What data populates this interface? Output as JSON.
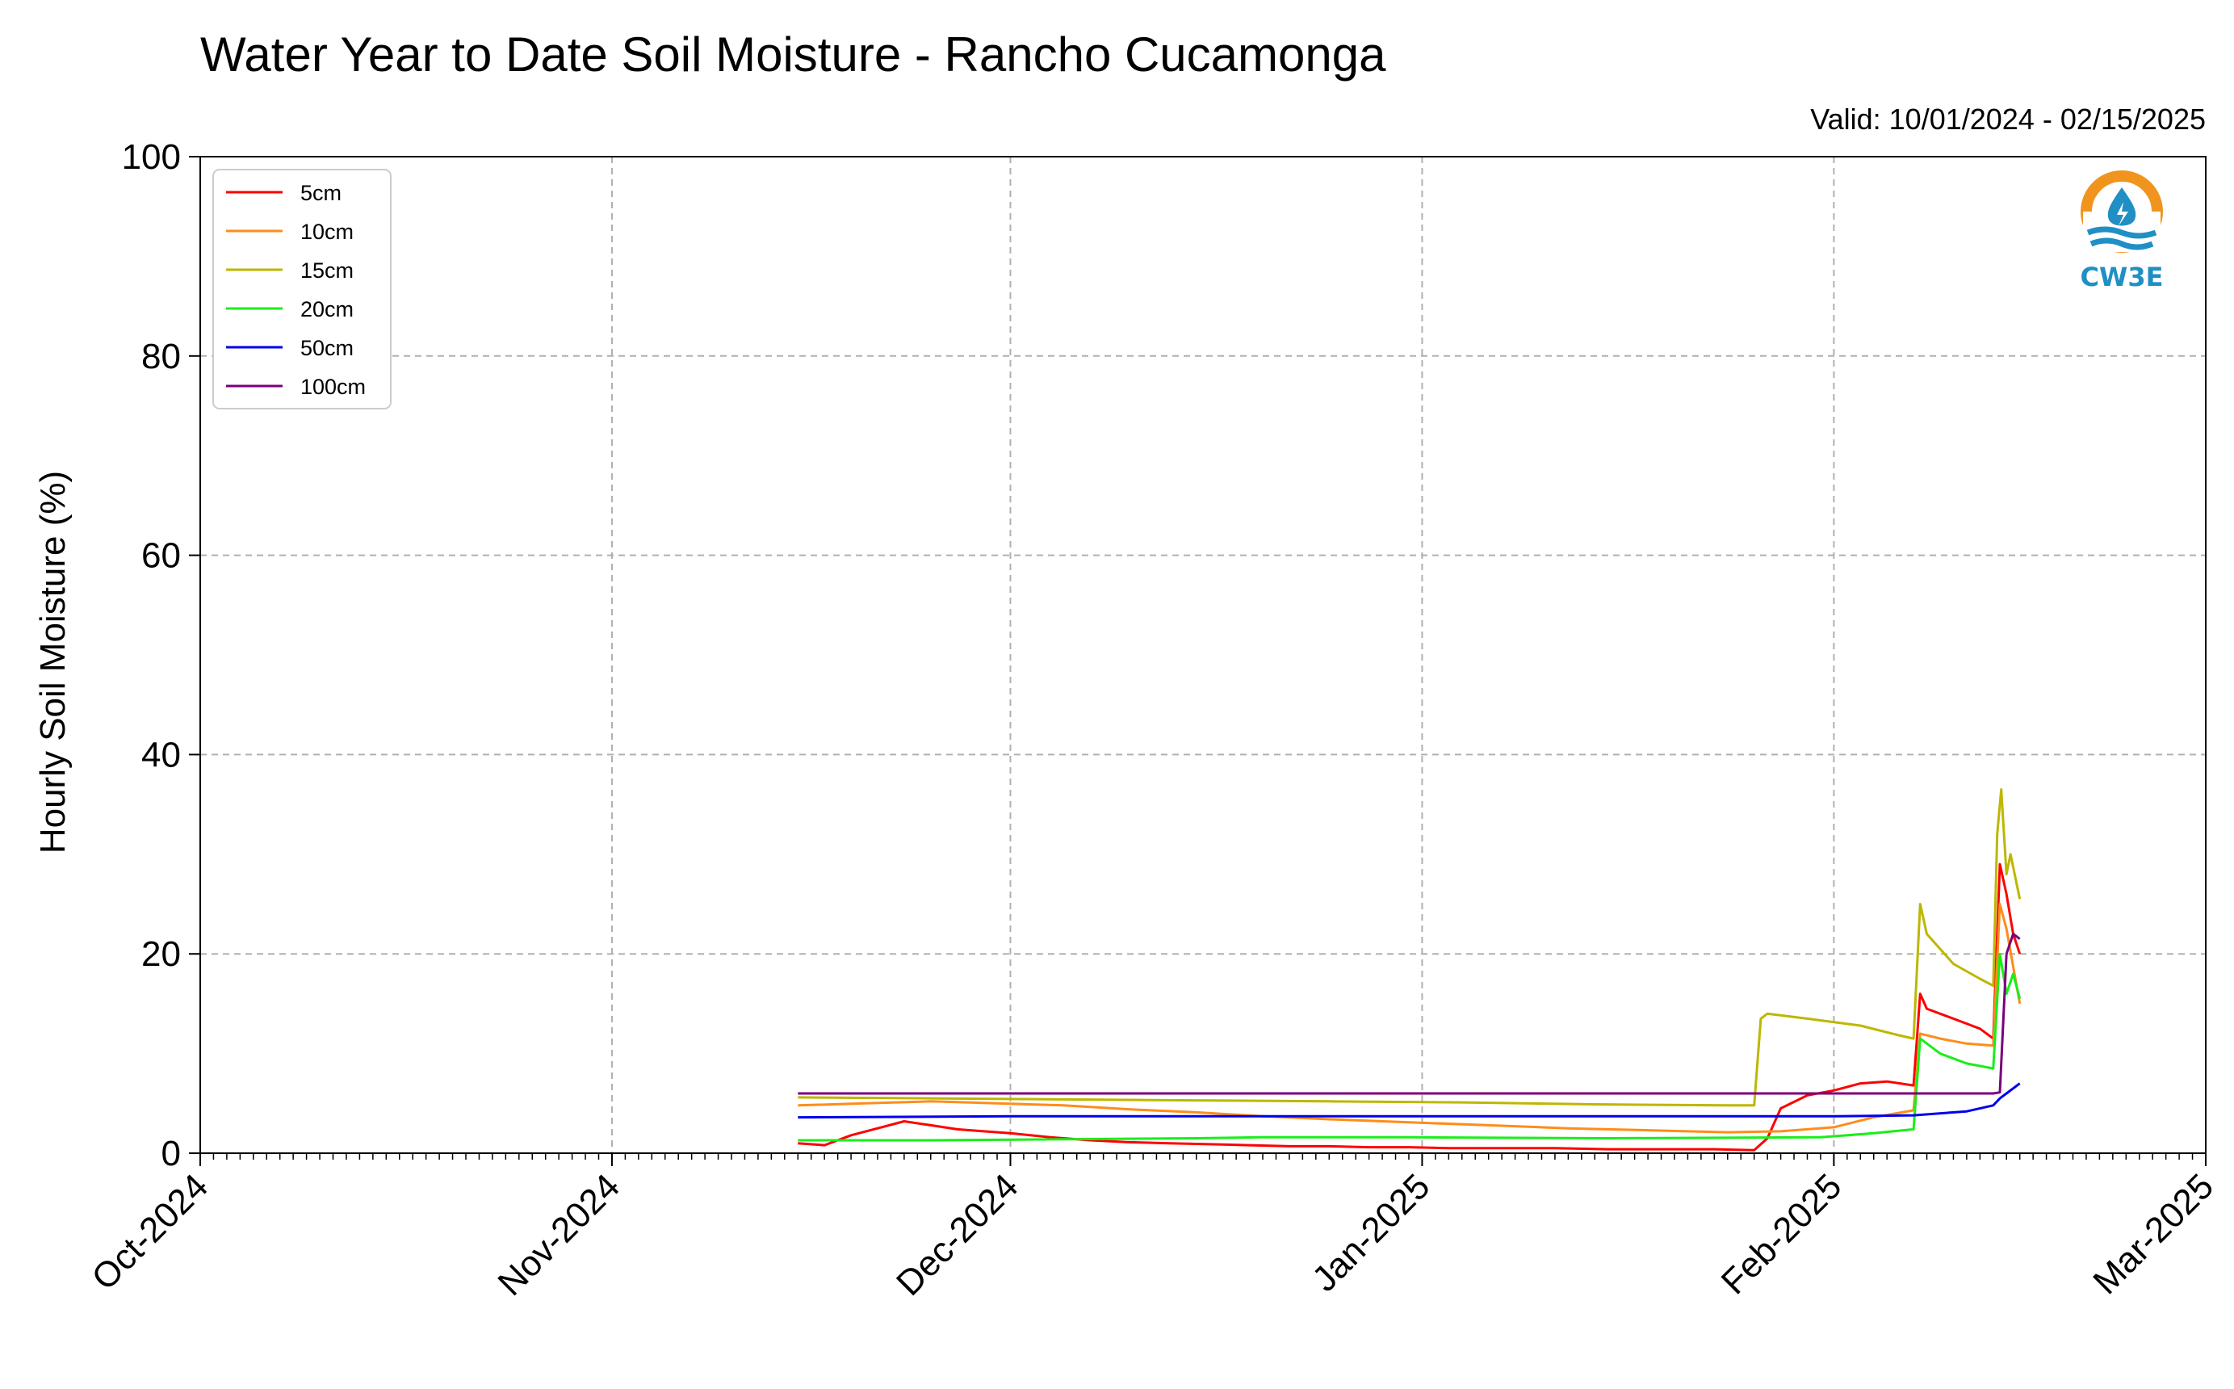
{
  "chart_data": {
    "type": "line",
    "title": "Water Year to Date Soil Moisture - Rancho Cucamonga",
    "subtitle": "Valid: 10/01/2024 - 02/15/2025",
    "ylabel": "Hourly Soil Moisture (%)",
    "xlabel": "",
    "ylim": [
      0,
      100
    ],
    "xlim": [
      "2024-10-01",
      "2025-03-01"
    ],
    "grid": true,
    "legend_position": "top-left",
    "yticks": [
      0,
      20,
      40,
      60,
      80,
      100
    ],
    "xticks": [
      {
        "date": "2024-10-01",
        "label": "Oct-2024"
      },
      {
        "date": "2024-11-01",
        "label": "Nov-2024"
      },
      {
        "date": "2024-12-01",
        "label": "Dec-2024"
      },
      {
        "date": "2025-01-01",
        "label": "Jan-2025"
      },
      {
        "date": "2025-02-01",
        "label": "Feb-2025"
      },
      {
        "date": "2025-03-01",
        "label": "Mar-2025"
      }
    ],
    "series": [
      {
        "name": "5cm",
        "color": "#ff0000",
        "points": [
          [
            "2024-11-15",
            1.0
          ],
          [
            "2024-11-17",
            0.8
          ],
          [
            "2024-11-19",
            1.8
          ],
          [
            "2024-11-21",
            2.5
          ],
          [
            "2024-11-23",
            3.2
          ],
          [
            "2024-11-25",
            2.8
          ],
          [
            "2024-11-27",
            2.4
          ],
          [
            "2024-11-29",
            2.2
          ],
          [
            "2024-12-01",
            2.0
          ],
          [
            "2024-12-04",
            1.6
          ],
          [
            "2024-12-07",
            1.3
          ],
          [
            "2024-12-10",
            1.1
          ],
          [
            "2024-12-13",
            1.0
          ],
          [
            "2024-12-16",
            0.9
          ],
          [
            "2024-12-19",
            0.8
          ],
          [
            "2024-12-22",
            0.7
          ],
          [
            "2024-12-25",
            0.7
          ],
          [
            "2024-12-28",
            0.6
          ],
          [
            "2024-12-31",
            0.6
          ],
          [
            "2025-01-03",
            0.5
          ],
          [
            "2025-01-07",
            0.5
          ],
          [
            "2025-01-11",
            0.5
          ],
          [
            "2025-01-15",
            0.4
          ],
          [
            "2025-01-19",
            0.4
          ],
          [
            "2025-01-23",
            0.4
          ],
          [
            "2025-01-26",
            0.3
          ],
          [
            "2025-01-27",
            1.5
          ],
          [
            "2025-01-28",
            4.5
          ],
          [
            "2025-01-30",
            5.8
          ],
          [
            "2025-02-01",
            6.3
          ],
          [
            "2025-02-03",
            7.0
          ],
          [
            "2025-02-05",
            7.2
          ],
          [
            "2025-02-07",
            6.8
          ],
          [
            "2025-02-07.5",
            16.0
          ],
          [
            "2025-02-08",
            14.5
          ],
          [
            "2025-02-10",
            13.5
          ],
          [
            "2025-02-12",
            12.5
          ],
          [
            "2025-02-13",
            11.5
          ],
          [
            "2025-02-13.5",
            29.0
          ],
          [
            "2025-02-14",
            26.0
          ],
          [
            "2025-02-14.5",
            22.0
          ],
          [
            "2025-02-15",
            20.0
          ]
        ]
      },
      {
        "name": "10cm",
        "color": "#ff8c1a",
        "points": [
          [
            "2024-11-15",
            4.8
          ],
          [
            "2024-11-20",
            5.0
          ],
          [
            "2024-11-25",
            5.2
          ],
          [
            "2024-11-30",
            5.0
          ],
          [
            "2024-12-05",
            4.8
          ],
          [
            "2024-12-10",
            4.4
          ],
          [
            "2024-12-15",
            4.1
          ],
          [
            "2024-12-20",
            3.7
          ],
          [
            "2024-12-25",
            3.4
          ],
          [
            "2024-12-31",
            3.1
          ],
          [
            "2025-01-06",
            2.8
          ],
          [
            "2025-01-12",
            2.5
          ],
          [
            "2025-01-18",
            2.3
          ],
          [
            "2025-01-24",
            2.1
          ],
          [
            "2025-01-28",
            2.2
          ],
          [
            "2025-02-01",
            2.6
          ],
          [
            "2025-02-04",
            3.6
          ],
          [
            "2025-02-07",
            4.3
          ],
          [
            "2025-02-07.5",
            12.0
          ],
          [
            "2025-02-09",
            11.5
          ],
          [
            "2025-02-11",
            11.0
          ],
          [
            "2025-02-13",
            10.8
          ],
          [
            "2025-02-13.5",
            25.0
          ],
          [
            "2025-02-14",
            22.5
          ],
          [
            "2025-02-15",
            15.0
          ]
        ]
      },
      {
        "name": "15cm",
        "color": "#bdb700",
        "points": [
          [
            "2024-11-15",
            5.6
          ],
          [
            "2024-11-25",
            5.5
          ],
          [
            "2024-12-05",
            5.4
          ],
          [
            "2024-12-15",
            5.3
          ],
          [
            "2024-12-25",
            5.2
          ],
          [
            "2025-01-04",
            5.1
          ],
          [
            "2025-01-14",
            4.9
          ],
          [
            "2025-01-24",
            4.8
          ],
          [
            "2025-01-26",
            4.8
          ],
          [
            "2025-01-26.5",
            13.5
          ],
          [
            "2025-01-27",
            14.0
          ],
          [
            "2025-01-30",
            13.5
          ],
          [
            "2025-02-03",
            12.8
          ],
          [
            "2025-02-06",
            11.8
          ],
          [
            "2025-02-07",
            11.5
          ],
          [
            "2025-02-07.5",
            25.0
          ],
          [
            "2025-02-08",
            22.0
          ],
          [
            "2025-02-10",
            19.0
          ],
          [
            "2025-02-12",
            17.5
          ],
          [
            "2025-02-13",
            16.8
          ],
          [
            "2025-02-13.3",
            32.0
          ],
          [
            "2025-02-13.6",
            36.5
          ],
          [
            "2025-02-14",
            28.0
          ],
          [
            "2025-02-14.3",
            30.0
          ],
          [
            "2025-02-15",
            25.5
          ]
        ]
      },
      {
        "name": "20cm",
        "color": "#1aee1a",
        "points": [
          [
            "2024-11-15",
            1.3
          ],
          [
            "2024-11-25",
            1.3
          ],
          [
            "2024-12-05",
            1.4
          ],
          [
            "2024-12-15",
            1.5
          ],
          [
            "2024-12-20",
            1.6
          ],
          [
            "2024-12-31",
            1.6
          ],
          [
            "2025-01-15",
            1.5
          ],
          [
            "2025-01-31",
            1.6
          ],
          [
            "2025-02-04",
            2.0
          ],
          [
            "2025-02-07",
            2.4
          ],
          [
            "2025-02-07.5",
            11.5
          ],
          [
            "2025-02-09",
            10.0
          ],
          [
            "2025-02-11",
            9.0
          ],
          [
            "2025-02-13",
            8.5
          ],
          [
            "2025-02-13.5",
            20.0
          ],
          [
            "2025-02-14",
            16.0
          ],
          [
            "2025-02-14.5",
            18.0
          ],
          [
            "2025-02-15",
            15.5
          ]
        ]
      },
      {
        "name": "50cm",
        "color": "#0000ee",
        "points": [
          [
            "2024-11-15",
            3.6
          ],
          [
            "2024-12-01",
            3.7
          ],
          [
            "2024-12-15",
            3.7
          ],
          [
            "2025-01-01",
            3.7
          ],
          [
            "2025-01-15",
            3.7
          ],
          [
            "2025-02-01",
            3.7
          ],
          [
            "2025-02-07",
            3.8
          ],
          [
            "2025-02-11",
            4.2
          ],
          [
            "2025-02-13",
            4.8
          ],
          [
            "2025-02-13.5",
            5.5
          ],
          [
            "2025-02-14",
            6.0
          ],
          [
            "2025-02-15",
            7.0
          ]
        ]
      },
      {
        "name": "100cm",
        "color": "#7a007a",
        "points": [
          [
            "2024-11-15",
            6.0
          ],
          [
            "2024-12-15",
            6.0
          ],
          [
            "2025-01-15",
            6.0
          ],
          [
            "2025-02-13",
            6.0
          ],
          [
            "2025-02-13.5",
            6.1
          ],
          [
            "2025-02-14",
            20.0
          ],
          [
            "2025-02-14.5",
            22.0
          ],
          [
            "2025-02-15",
            21.5
          ]
        ]
      }
    ]
  },
  "logo": {
    "text": "CW3E",
    "colors": {
      "orange": "#f0941e",
      "blue": "#1f8fc4"
    }
  }
}
